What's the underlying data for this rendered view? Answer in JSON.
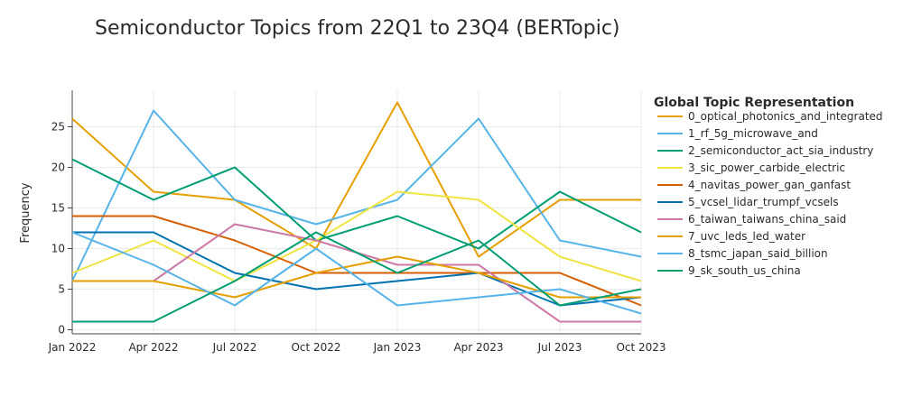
{
  "chart_data": {
    "type": "line",
    "title": "Semiconductor Topics from 22Q1 to 23Q4 (BERTopic)",
    "ylabel": "Frequency",
    "xlabel": "",
    "x": [
      "2022-01",
      "2022-04",
      "2022-07",
      "2022-10",
      "2023-01",
      "2023-04",
      "2023-07",
      "2023-10"
    ],
    "x_tick_labels": [
      "Jan 2022",
      "Apr 2022",
      "Jul 2022",
      "Oct 2022",
      "Jan 2023",
      "Apr 2023",
      "Jul 2023",
      "Oct 2023"
    ],
    "ylim": [
      -0.5,
      29.5
    ],
    "y_ticks": [
      0,
      5,
      10,
      15,
      20,
      25
    ],
    "grid": true,
    "legend_title": "Global Topic Representation",
    "legend_position": "right",
    "series": [
      {
        "name": "0_optical_photonics_and_integrated",
        "color": "#E69F00",
        "values": [
          26,
          17,
          16,
          10,
          28,
          9,
          16,
          16
        ]
      },
      {
        "name": "1_rf_5g_microwave_and",
        "color": "#56B4E9",
        "values": [
          6,
          27,
          16,
          13,
          16,
          26,
          11,
          9
        ]
      },
      {
        "name": "2_semiconductor_act_sia_industry",
        "color": "#009E73",
        "values": [
          21,
          16,
          20,
          11,
          14,
          10,
          17,
          12
        ]
      },
      {
        "name": "3_sic_power_carbide_electric",
        "color": "#F0E442",
        "values": [
          7,
          11,
          6,
          11,
          17,
          16,
          9,
          6
        ]
      },
      {
        "name": "4_navitas_power_gan_ganfast",
        "color": "#D55E00",
        "values": [
          14,
          14,
          11,
          7,
          7,
          7,
          7,
          3
        ]
      },
      {
        "name": "5_vcsel_lidar_trumpf_vcsels",
        "color": "#0072B2",
        "values": [
          12,
          12,
          7,
          5,
          6,
          7,
          3,
          4
        ]
      },
      {
        "name": "6_taiwan_taiwans_china_said",
        "color": "#CC79A7",
        "values": [
          6,
          6,
          13,
          11,
          8,
          8,
          1,
          1
        ]
      },
      {
        "name": "7_uvc_leds_led_water",
        "color": "#E69F00",
        "values": [
          6,
          6,
          4,
          7,
          9,
          7,
          4,
          4
        ]
      },
      {
        "name": "8_tsmc_japan_said_billion",
        "color": "#56B4E9",
        "values": [
          12,
          8,
          3,
          10,
          3,
          4,
          5,
          2
        ]
      },
      {
        "name": "9_sk_south_us_china",
        "color": "#009E73",
        "values": [
          1,
          1,
          6,
          12,
          7,
          11,
          3,
          5
        ]
      }
    ]
  }
}
